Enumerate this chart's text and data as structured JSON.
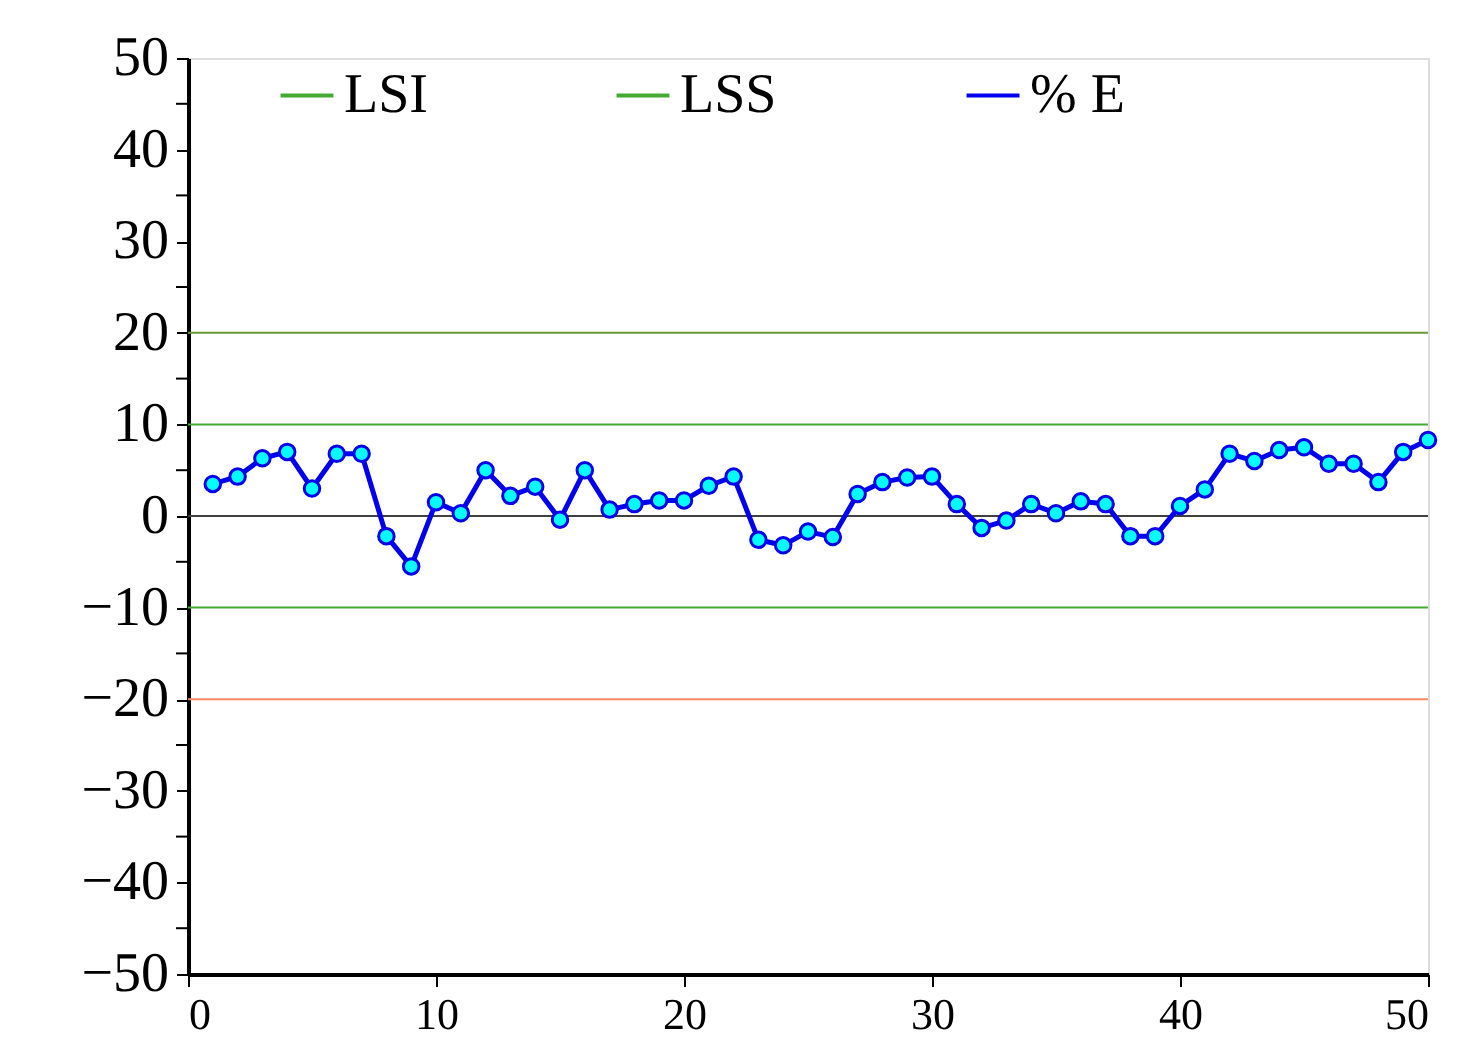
{
  "chart_data": {
    "type": "line",
    "xlim": [
      0,
      50
    ],
    "xticks": [
      0,
      10,
      20,
      30,
      40,
      50
    ],
    "ylim": [
      -50,
      50
    ],
    "yticks": [
      -50,
      {
        "value": -45,
        "label": null
      },
      -40,
      {
        "value": -35,
        "label": null
      },
      -30,
      {
        "value": -25,
        "label": null
      },
      -20,
      {
        "value": -15,
        "label": null
      },
      -10,
      {
        "value": -5,
        "label": null
      },
      0,
      {
        "value": 5,
        "label": null
      },
      10,
      {
        "value": 15,
        "label": null
      },
      20,
      {
        "value": 25,
        "label": null
      },
      30,
      {
        "value": 35,
        "label": null
      },
      40,
      {
        "value": 45,
        "label": null
      },
      50
    ],
    "grid": false,
    "legend": "top",
    "marker": "circle",
    "line_style": "solid",
    "ref_lines": [
      {
        "axis": "y",
        "value": 20,
        "color": "#669933"
      },
      {
        "axis": "y",
        "value": 0,
        "color": "#404040"
      },
      {
        "axis": "y",
        "value": -20,
        "color": "#ff8866"
      }
    ],
    "series": [
      {
        "name": "LSI",
        "color": "#44aa33",
        "marker": "none",
        "x": [
          0,
          50
        ],
        "values": [
          -10,
          -10
        ]
      },
      {
        "name": "LSS",
        "color": "#44aa33",
        "marker": "none",
        "x": [
          0,
          50
        ],
        "values": [
          10,
          10
        ]
      },
      {
        "name": "% E",
        "color": "#0000ee",
        "x": [
          1,
          2,
          3,
          4,
          5,
          6,
          7,
          8,
          9,
          10,
          11,
          12,
          13,
          14,
          15,
          16,
          17,
          18,
          19,
          20,
          21,
          22,
          23,
          24,
          25,
          26,
          27,
          28,
          29,
          30,
          31,
          32,
          33,
          34,
          35,
          36,
          37,
          38,
          39,
          40,
          41,
          42,
          43,
          44,
          45,
          46,
          47,
          48,
          49,
          50
        ],
        "values": [
          3.5,
          4.3,
          6.3,
          7.0,
          3.0,
          6.8,
          6.8,
          -2.2,
          -5.5,
          1.5,
          0.3,
          5.0,
          2.2,
          3.2,
          -0.4,
          5.0,
          0.7,
          1.3,
          1.7,
          1.7,
          3.3,
          4.3,
          -2.6,
          -3.2,
          -1.7,
          -2.3,
          2.4,
          3.7,
          4.2,
          4.3,
          1.3,
          -1.3,
          -0.5,
          1.3,
          0.3,
          1.6,
          1.3,
          -2.2,
          -2.2,
          1.1,
          2.9,
          6.8,
          6.0,
          7.2,
          7.5,
          5.7,
          5.7,
          3.7,
          7.0,
          8.3
        ]
      }
    ]
  }
}
